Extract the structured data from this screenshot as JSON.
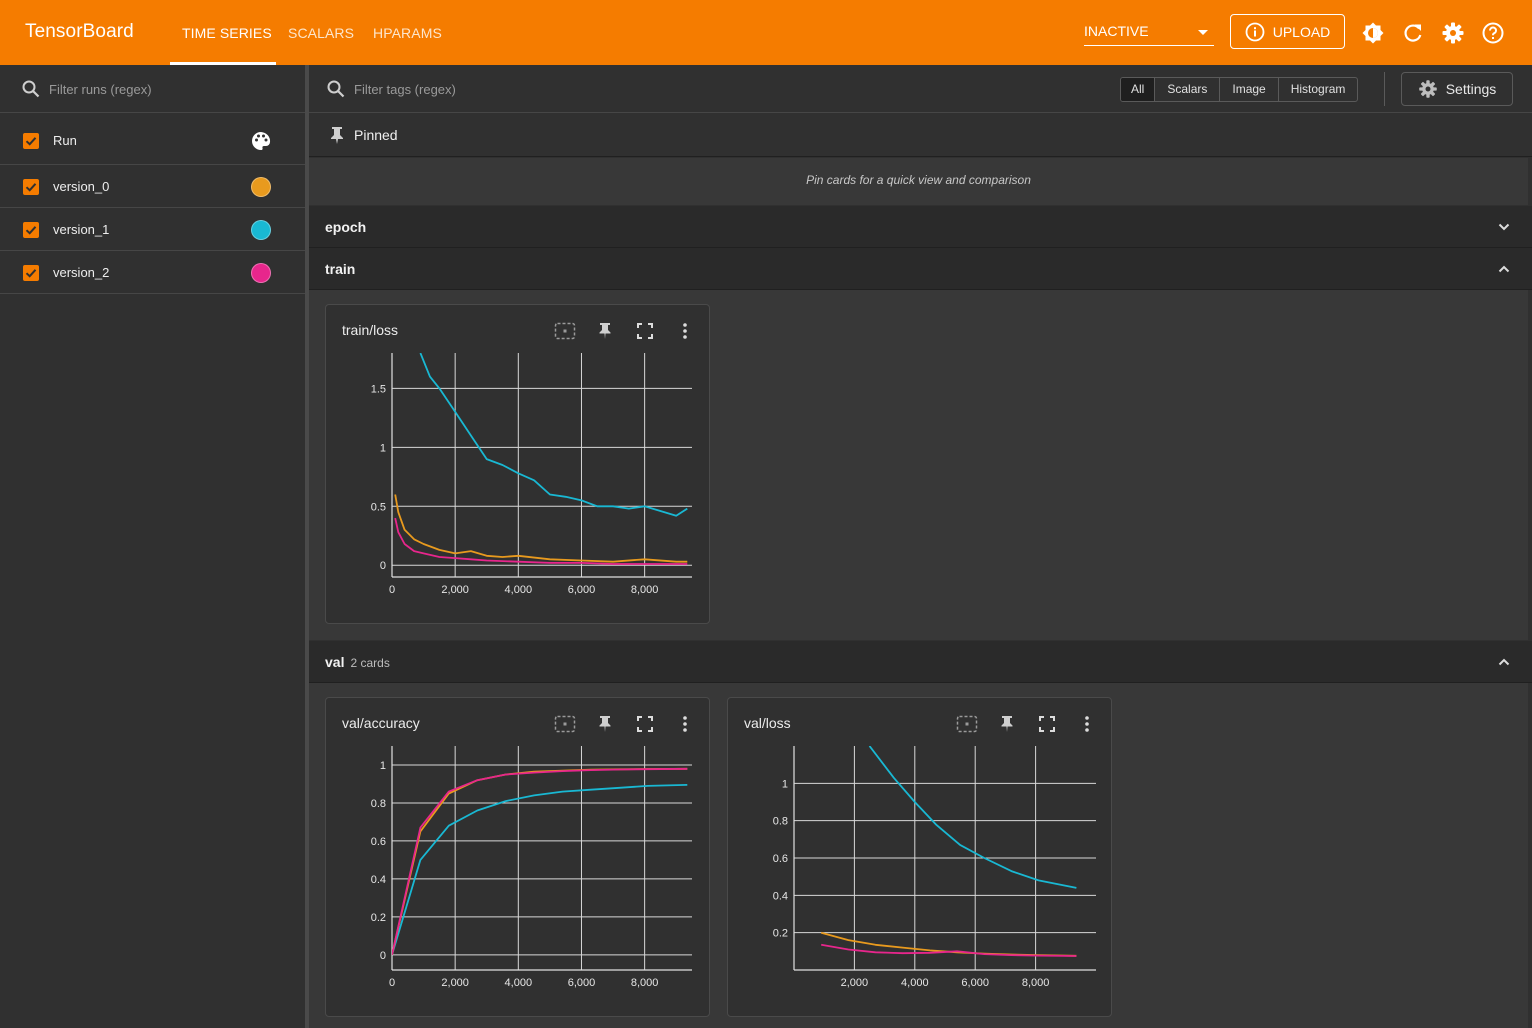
{
  "app": {
    "title": "TensorBoard",
    "tabs": [
      {
        "label": "TIME SERIES",
        "active": true
      },
      {
        "label": "SCALARS",
        "active": false
      },
      {
        "label": "HPARAMS",
        "active": false
      }
    ],
    "status": "INACTIVE",
    "upload_label": "UPLOAD",
    "accent": "#f57c00",
    "icons": [
      "theme-icon",
      "refresh-icon",
      "gear-icon",
      "help-icon"
    ]
  },
  "sidebar": {
    "filter_placeholder": "Filter runs (regex)",
    "header_label": "Run",
    "runs": [
      {
        "name": "version_0",
        "color": "#e89a1e"
      },
      {
        "name": "version_1",
        "color": "#19b8d3"
      },
      {
        "name": "version_2",
        "color": "#e7268c"
      }
    ]
  },
  "main": {
    "filter_placeholder": "Filter tags (regex)",
    "type_filters": [
      "All",
      "Scalars",
      "Image",
      "Histogram"
    ],
    "settings_label": "Settings",
    "pinned": {
      "label": "Pinned",
      "empty_text": "Pin cards for a quick view and comparison"
    },
    "groups": [
      {
        "name": "epoch",
        "count": "",
        "expanded": false
      },
      {
        "name": "train",
        "count": "",
        "expanded": true
      },
      {
        "name": "val",
        "count": "2 cards",
        "expanded": true
      }
    ]
  },
  "chart_data": [
    {
      "title": "train/loss",
      "type": "line",
      "xlim": [
        0,
        9500
      ],
      "ylim": [
        -0.1,
        1.8
      ],
      "xticks": [
        {
          "v": 0,
          "label": "0"
        },
        {
          "v": 2000,
          "label": "2,000"
        },
        {
          "v": 4000,
          "label": "4,000"
        },
        {
          "v": 6000,
          "label": "6,000"
        },
        {
          "v": 8000,
          "label": "8,000"
        }
      ],
      "yticks": [
        {
          "v": 0,
          "label": "0"
        },
        {
          "v": 0.5,
          "label": "0.5"
        },
        {
          "v": 1,
          "label": "1"
        },
        {
          "v": 1.5,
          "label": "1.5"
        }
      ],
      "series": [
        {
          "run": "version_1",
          "color": "#19b8d3",
          "x": [
            900,
            1200,
            1500,
            2000,
            2500,
            3000,
            3500,
            4000,
            4500,
            5000,
            5500,
            6000,
            6500,
            7000,
            7500,
            8000,
            8500,
            9000,
            9350
          ],
          "y": [
            1.8,
            1.6,
            1.5,
            1.3,
            1.1,
            0.9,
            0.85,
            0.78,
            0.72,
            0.6,
            0.58,
            0.55,
            0.5,
            0.5,
            0.48,
            0.5,
            0.46,
            0.42,
            0.48
          ]
        },
        {
          "run": "version_0",
          "color": "#e89a1e",
          "x": [
            100,
            200,
            400,
            700,
            1000,
            1500,
            2000,
            2500,
            3000,
            3500,
            4000,
            5000,
            6000,
            7000,
            8000,
            9000,
            9350
          ],
          "y": [
            0.6,
            0.45,
            0.3,
            0.22,
            0.18,
            0.13,
            0.1,
            0.12,
            0.08,
            0.07,
            0.08,
            0.05,
            0.04,
            0.03,
            0.05,
            0.03,
            0.03
          ]
        },
        {
          "run": "version_2",
          "color": "#e7268c",
          "x": [
            100,
            200,
            400,
            700,
            1000,
            1500,
            2000,
            2500,
            3000,
            4000,
            5000,
            6000,
            7000,
            8000,
            9000,
            9350
          ],
          "y": [
            0.4,
            0.28,
            0.18,
            0.12,
            0.1,
            0.07,
            0.06,
            0.05,
            0.04,
            0.03,
            0.02,
            0.02,
            0.01,
            0.01,
            0.01,
            0.01
          ]
        }
      ]
    },
    {
      "title": "val/accuracy",
      "type": "line",
      "xlim": [
        0,
        9500
      ],
      "ylim": [
        -0.08,
        1.1
      ],
      "xticks": [
        {
          "v": 0,
          "label": "0"
        },
        {
          "v": 2000,
          "label": "2,000"
        },
        {
          "v": 4000,
          "label": "4,000"
        },
        {
          "v": 6000,
          "label": "6,000"
        },
        {
          "v": 8000,
          "label": "8,000"
        }
      ],
      "yticks": [
        {
          "v": 0,
          "label": "0"
        },
        {
          "v": 0.2,
          "label": "0.2"
        },
        {
          "v": 0.4,
          "label": "0.4"
        },
        {
          "v": 0.6,
          "label": "0.6"
        },
        {
          "v": 0.8,
          "label": "0.8"
        },
        {
          "v": 1,
          "label": "1"
        }
      ],
      "series": [
        {
          "run": "version_1",
          "color": "#19b8d3",
          "x": [
            0,
            900,
            1800,
            2700,
            3600,
            4500,
            5400,
            6300,
            7200,
            8100,
            9350
          ],
          "y": [
            0,
            0.5,
            0.68,
            0.76,
            0.81,
            0.84,
            0.86,
            0.87,
            0.88,
            0.89,
            0.895
          ]
        },
        {
          "run": "version_0",
          "color": "#e89a1e",
          "x": [
            0,
            900,
            1800,
            2700,
            3600,
            4500,
            5400,
            6300,
            7200,
            8100,
            9350
          ],
          "y": [
            0,
            0.65,
            0.85,
            0.92,
            0.95,
            0.965,
            0.97,
            0.975,
            0.977,
            0.979,
            0.98
          ]
        },
        {
          "run": "version_2",
          "color": "#e7268c",
          "x": [
            0,
            900,
            1800,
            2700,
            3600,
            4500,
            5400,
            6300,
            7200,
            8100,
            9350
          ],
          "y": [
            0,
            0.67,
            0.86,
            0.92,
            0.95,
            0.96,
            0.968,
            0.973,
            0.976,
            0.978,
            0.98
          ]
        }
      ]
    },
    {
      "title": "val/loss",
      "type": "line",
      "xlim": [
        0,
        10000
      ],
      "ylim": [
        0,
        1.2
      ],
      "xticks": [
        {
          "v": 2000,
          "label": "2,000"
        },
        {
          "v": 4000,
          "label": "4,000"
        },
        {
          "v": 6000,
          "label": "6,000"
        },
        {
          "v": 8000,
          "label": "8,000"
        }
      ],
      "yticks": [
        {
          "v": 0.2,
          "label": "0.2"
        },
        {
          "v": 0.4,
          "label": "0.4"
        },
        {
          "v": 0.6,
          "label": "0.6"
        },
        {
          "v": 0.8,
          "label": "0.8"
        },
        {
          "v": 1,
          "label": "1"
        }
      ],
      "series": [
        {
          "run": "version_1",
          "color": "#19b8d3",
          "x": [
            2500,
            3300,
            4000,
            4700,
            5500,
            6300,
            7200,
            8100,
            9350
          ],
          "y": [
            1.2,
            1.03,
            0.9,
            0.78,
            0.67,
            0.6,
            0.53,
            0.48,
            0.44
          ]
        },
        {
          "run": "version_0",
          "color": "#e89a1e",
          "x": [
            900,
            1800,
            2700,
            3600,
            4500,
            5400,
            6300,
            7200,
            8100,
            9350
          ],
          "y": [
            0.2,
            0.16,
            0.135,
            0.12,
            0.105,
            0.095,
            0.088,
            0.083,
            0.08,
            0.076
          ]
        },
        {
          "run": "version_2",
          "color": "#e7268c",
          "x": [
            900,
            1800,
            2700,
            3600,
            4500,
            5400,
            6300,
            7200,
            8100,
            9350
          ],
          "y": [
            0.135,
            0.11,
            0.095,
            0.09,
            0.092,
            0.1,
            0.085,
            0.08,
            0.077,
            0.075
          ]
        }
      ]
    }
  ]
}
